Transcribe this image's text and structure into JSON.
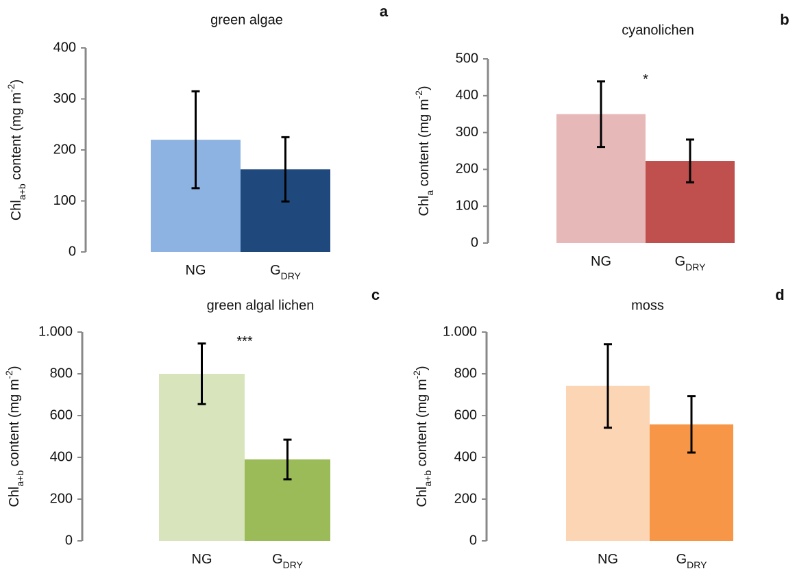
{
  "chart_data": [
    {
      "type": "bar",
      "title": "green algae",
      "panel_label": "a",
      "y_label": [
        {
          "text": "Chl"
        },
        {
          "text": "a+b",
          "shift": "sub"
        },
        {
          "text": " content (mg m"
        },
        {
          "text": "-2",
          "shift": "super"
        },
        {
          "text": ")"
        }
      ],
      "categories": [
        [
          {
            "text": "NG"
          }
        ],
        [
          {
            "text": "G"
          },
          {
            "text": "DRY",
            "shift": "sub"
          }
        ]
      ],
      "values": [
        220,
        162
      ],
      "errors": [
        95,
        63
      ],
      "colors": [
        "#8db3e2",
        "#1f497d"
      ],
      "ylim": [
        0,
        400
      ],
      "yticks": [
        0,
        100,
        200,
        300,
        400
      ]
    },
    {
      "type": "bar",
      "title": "cyanolichen",
      "panel_label": "b",
      "y_label": [
        {
          "text": "Chl"
        },
        {
          "text": "a",
          "shift": "sub"
        },
        {
          "text": " content (mg m"
        },
        {
          "text": "-2",
          "shift": "super"
        },
        {
          "text": ")"
        }
      ],
      "categories": [
        [
          {
            "text": "NG"
          }
        ],
        [
          {
            "text": "G"
          },
          {
            "text": "DRY",
            "shift": "sub"
          }
        ]
      ],
      "values": [
        350,
        223
      ],
      "errors": [
        89,
        58
      ],
      "colors": [
        "#e6b9b8",
        "#c0504d"
      ],
      "ylim": [
        0,
        500
      ],
      "yticks": [
        0,
        100,
        200,
        300,
        400,
        500
      ],
      "annotation": "*"
    },
    {
      "type": "bar",
      "title": "green algal lichen",
      "panel_label": "c",
      "y_label": [
        {
          "text": "Chl"
        },
        {
          "text": "a+b",
          "shift": "sub"
        },
        {
          "text": " content (mg m"
        },
        {
          "text": "-2",
          "shift": "super"
        },
        {
          "text": ")"
        }
      ],
      "categories": [
        [
          {
            "text": "NG"
          }
        ],
        [
          {
            "text": "G"
          },
          {
            "text": "DRY",
            "shift": "sub"
          }
        ]
      ],
      "values": [
        800,
        390
      ],
      "errors": [
        145,
        95
      ],
      "colors": [
        "#d7e4bc",
        "#9bbb59"
      ],
      "ylim": [
        0,
        1000
      ],
      "yticks": [
        0,
        200,
        400,
        600,
        800,
        {
          "value": 1000,
          "label": "1.000"
        }
      ],
      "annotation": "***"
    },
    {
      "type": "bar",
      "title": "moss",
      "panel_label": "d",
      "y_label": [
        {
          "text": "Chl"
        },
        {
          "text": "a+b",
          "shift": "sub"
        },
        {
          "text": " content (mg m"
        },
        {
          "text": "-2",
          "shift": "super"
        },
        {
          "text": ")"
        }
      ],
      "categories": [
        [
          {
            "text": "NG"
          }
        ],
        [
          {
            "text": "G"
          },
          {
            "text": "DRY",
            "shift": "sub"
          }
        ]
      ],
      "values": [
        742,
        558
      ],
      "errors": [
        200,
        135
      ],
      "colors": [
        "#fcd5b4",
        "#f79646"
      ],
      "ylim": [
        0,
        1000
      ],
      "yticks": [
        0,
        200,
        400,
        600,
        800,
        {
          "value": 1000,
          "label": "1.000"
        }
      ]
    }
  ]
}
